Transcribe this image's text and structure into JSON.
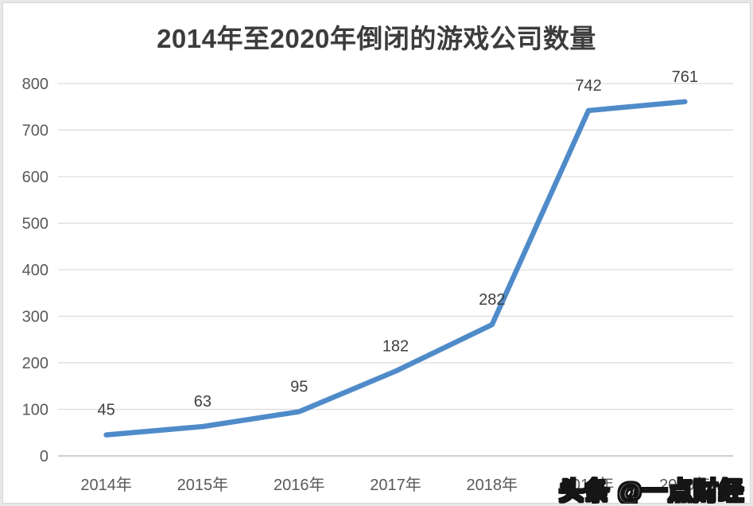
{
  "chart_data": {
    "type": "line",
    "title": "2014年至2020年倒闭的游戏公司数量",
    "categories": [
      "2014年",
      "2015年",
      "2016年",
      "2017年",
      "2018年",
      "2019年",
      "2020年"
    ],
    "values": [
      45,
      63,
      95,
      182,
      282,
      742,
      761
    ],
    "data_labels_shown": true,
    "xlabel": "",
    "ylabel": "",
    "ylim": [
      0,
      800
    ],
    "ytick_step": 100,
    "yticks": [
      0,
      100,
      200,
      300,
      400,
      500,
      600,
      700,
      800
    ],
    "grid": true,
    "legend": "none",
    "colors": {
      "line": "#4f8bc9",
      "title": "#3c3c3c",
      "data_label": "#404040",
      "axis_label": "#595959",
      "gridline": "#dcdcdc",
      "axis_line": "#bfbfbf"
    }
  },
  "watermark": {
    "text": "头条 @一点财经"
  }
}
